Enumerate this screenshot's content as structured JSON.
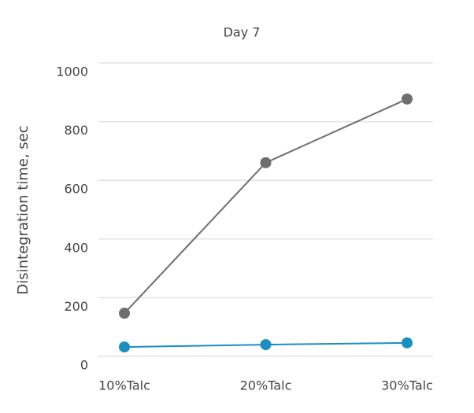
{
  "chart_data": {
    "type": "line",
    "title": "Day 7",
    "y_label": "Disintegration time, sec",
    "categories": [
      "10%Talc",
      "20%Talc",
      "30%Talc"
    ],
    "series": [
      {
        "color": "#6e6e6e",
        "values": [
          147,
          660,
          877
        ]
      },
      {
        "color": "#1a8fc0",
        "values": [
          32,
          40,
          46
        ]
      }
    ],
    "ylim": [
      0,
      1000
    ],
    "yticks": [
      0,
      200,
      400,
      600,
      800,
      1000
    ],
    "grid": true
  }
}
